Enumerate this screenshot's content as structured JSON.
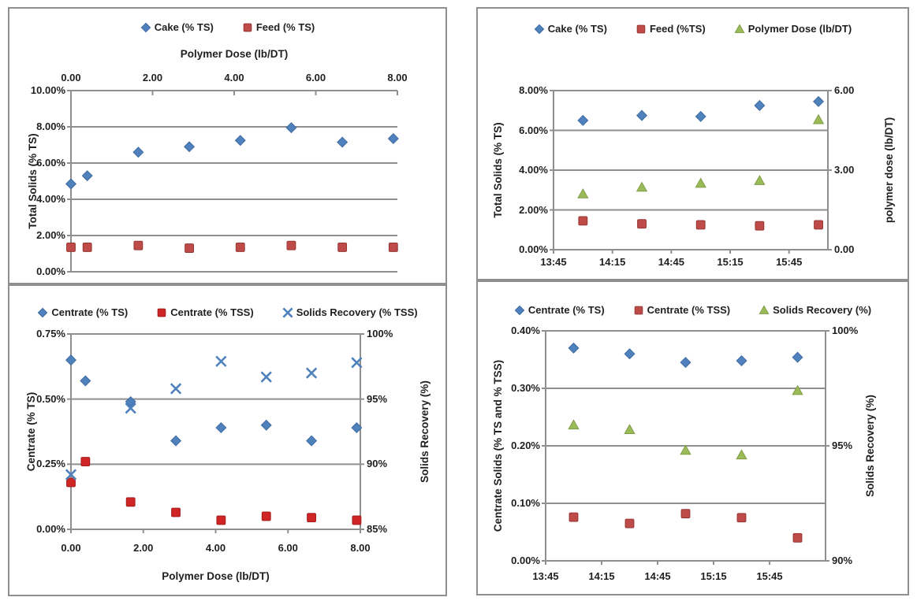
{
  "colors": {
    "marker_blue": "#4f81bd",
    "marker_blue_stroke": "#3f6ba3",
    "marker_red": "#be4b48",
    "marker_red_stroke": "#963734",
    "marker_bright_red": "#cf2525",
    "marker_bright_red_stroke": "#a21d1d",
    "marker_green": "#9bbb59",
    "marker_green_stroke": "#7e9d44",
    "gridline": "#8f8f8f",
    "panel_border": "#8f8f8f",
    "text": "#1f1f1f"
  },
  "chart_data": [
    {
      "type": "scatter",
      "position": "top-left",
      "x_axis": {
        "title": "Polymer Dose (lb/DT)",
        "side": "top",
        "min": 0,
        "max": 8,
        "ticks": [
          "0.00",
          "2.00",
          "4.00",
          "6.00",
          "8.00"
        ],
        "tick_values": [
          0,
          2,
          4,
          6,
          8
        ]
      },
      "y_axis": {
        "title": "Total Solids (% TS)",
        "min": 0,
        "max": 10,
        "ticks": [
          "0.00%",
          "2.00%",
          "4.00%",
          "6.00%",
          "8.00%",
          "10.00%"
        ],
        "tick_values": [
          0,
          2,
          4,
          6,
          8,
          10
        ]
      },
      "series": [
        {
          "key": "cake-ts",
          "name": "Cake (% TS)",
          "marker": "diamond",
          "fill": "#4f81bd",
          "stroke": "#3f6ba3",
          "axis": "left",
          "x": [
            0,
            0.4,
            1.65,
            2.9,
            4.15,
            5.4,
            6.65,
            7.9
          ],
          "y": [
            4.85,
            5.3,
            6.6,
            6.9,
            7.25,
            7.95,
            7.15,
            7.35
          ]
        },
        {
          "key": "feed-ts",
          "name": "Feed (% TS)",
          "marker": "square",
          "fill": "#be4b48",
          "stroke": "#963734",
          "axis": "left",
          "x": [
            0,
            0.4,
            1.65,
            2.9,
            4.15,
            5.4,
            6.65,
            7.9
          ],
          "y": [
            1.35,
            1.35,
            1.45,
            1.3,
            1.35,
            1.45,
            1.35,
            1.35
          ]
        }
      ]
    },
    {
      "type": "scatter",
      "position": "top-right",
      "x_axis": {
        "title": "",
        "side": "bottom",
        "min": 13.75,
        "max": 16.08,
        "ticks": [
          "13:45",
          "14:15",
          "14:45",
          "15:15",
          "15:45"
        ],
        "tick_values": [
          13.75,
          14.25,
          14.75,
          15.25,
          15.75
        ]
      },
      "y_axis": {
        "title": "Total Solids (% TS)",
        "min": 0,
        "max": 8,
        "ticks": [
          "0.00%",
          "2.00%",
          "4.00%",
          "6.00%",
          "8.00%"
        ],
        "tick_values": [
          0,
          2,
          4,
          6,
          8
        ]
      },
      "y_axis_right": {
        "title": "polymer dose (lb/DT)",
        "min": 0,
        "max": 6,
        "ticks": [
          "0.00",
          "3.00",
          "6.00"
        ],
        "tick_values": [
          0,
          3,
          6
        ]
      },
      "series": [
        {
          "key": "cake-ts",
          "name": "Cake (% TS)",
          "marker": "diamond",
          "fill": "#4f81bd",
          "stroke": "#3f6ba3",
          "axis": "left",
          "x": [
            14.0,
            14.5,
            15.0,
            15.5,
            16.0
          ],
          "y": [
            6.5,
            6.75,
            6.7,
            7.25,
            7.45
          ]
        },
        {
          "key": "feed-ts",
          "name": "Feed (%TS)",
          "marker": "square",
          "fill": "#be4b48",
          "stroke": "#963734",
          "axis": "left",
          "x": [
            14.0,
            14.5,
            15.0,
            15.5,
            16.0
          ],
          "y": [
            1.45,
            1.3,
            1.25,
            1.2,
            1.25
          ]
        },
        {
          "key": "polymer-dose",
          "name": "Polymer Dose (lb/DT)",
          "marker": "triangle",
          "fill": "#9bbb59",
          "stroke": "#7e9d44",
          "axis": "right",
          "x": [
            14.0,
            14.5,
            15.0,
            15.5,
            16.0
          ],
          "y": [
            2.1,
            2.35,
            2.5,
            2.6,
            4.9
          ]
        }
      ]
    },
    {
      "type": "scatter",
      "position": "bottom-left",
      "x_axis": {
        "title": "Polymer Dose (lb/DT)",
        "side": "bottom",
        "min": 0,
        "max": 8,
        "ticks": [
          "0.00",
          "2.00",
          "4.00",
          "6.00",
          "8.00"
        ],
        "tick_values": [
          0,
          2,
          4,
          6,
          8
        ]
      },
      "y_axis": {
        "title": "Centrate (% TS)",
        "min": 0,
        "max": 0.75,
        "ticks": [
          "0.00%",
          "0.25%",
          "0.50%",
          "0.75%"
        ],
        "tick_values": [
          0,
          0.25,
          0.5,
          0.75
        ]
      },
      "y_axis_right": {
        "title": "Solids Recovery (%)",
        "min": 85,
        "max": 100,
        "ticks": [
          "85%",
          "90%",
          "95%",
          "100%"
        ],
        "tick_values": [
          85,
          90,
          95,
          100
        ]
      },
      "series": [
        {
          "key": "centrate-ts",
          "name": "Centrate (% TS)",
          "marker": "diamond",
          "fill": "#4f81bd",
          "stroke": "#3f6ba3",
          "axis": "left",
          "x": [
            0,
            0.4,
            1.65,
            2.9,
            4.15,
            5.4,
            6.65,
            7.9
          ],
          "y": [
            0.65,
            0.57,
            0.49,
            0.34,
            0.39,
            0.4,
            0.34,
            0.39
          ]
        },
        {
          "key": "centrate-tss",
          "name": "Centrate (% TSS)",
          "marker": "square",
          "fill": "#cf2525",
          "stroke": "#a21d1d",
          "axis": "left",
          "x": [
            0,
            0.4,
            1.65,
            2.9,
            4.15,
            5.4,
            6.65,
            7.9
          ],
          "y": [
            0.18,
            0.26,
            0.105,
            0.065,
            0.035,
            0.05,
            0.045,
            0.035
          ]
        },
        {
          "key": "solids-recovery",
          "name": "Solids Recovery (% TSS)",
          "marker": "xmark",
          "fill": "#4f81bd",
          "stroke": "#3f6ba3",
          "axis": "right",
          "x": [
            0,
            1.65,
            2.9,
            4.15,
            5.4,
            6.65,
            7.9
          ],
          "y": [
            89.2,
            94.3,
            95.8,
            97.9,
            96.7,
            97.0,
            97.8
          ]
        }
      ]
    },
    {
      "type": "scatter",
      "position": "bottom-right",
      "x_axis": {
        "title": "",
        "side": "bottom",
        "min": 13.75,
        "max": 16.25,
        "ticks": [
          "13:45",
          "14:15",
          "14:45",
          "15:15",
          "15:45"
        ],
        "tick_values": [
          13.75,
          14.25,
          14.75,
          15.25,
          15.75
        ]
      },
      "y_axis": {
        "title": "Centrate Solids (% TS and % TSS)",
        "min": 0,
        "max": 0.4,
        "ticks": [
          "0.00%",
          "0.10%",
          "0.20%",
          "0.30%",
          "0.40%"
        ],
        "tick_values": [
          0,
          0.1,
          0.2,
          0.3,
          0.4
        ]
      },
      "y_axis_right": {
        "title": "Solids Recovery (%)",
        "min": 90,
        "max": 100,
        "ticks": [
          "90%",
          "95%",
          "100%"
        ],
        "tick_values": [
          90,
          95,
          100
        ]
      },
      "series": [
        {
          "key": "centrate-ts",
          "name": "Centrate (% TS)",
          "marker": "diamond",
          "fill": "#4f81bd",
          "stroke": "#3f6ba3",
          "axis": "left",
          "x": [
            14.0,
            14.5,
            15.0,
            15.5,
            16.0
          ],
          "y": [
            0.37,
            0.36,
            0.345,
            0.348,
            0.354
          ]
        },
        {
          "key": "centrate-tss",
          "name": "Centrate (% TSS)",
          "marker": "square",
          "fill": "#be4b48",
          "stroke": "#963734",
          "axis": "left",
          "x": [
            14.0,
            14.5,
            15.0,
            15.5,
            16.0
          ],
          "y": [
            0.076,
            0.065,
            0.082,
            0.075,
            0.04
          ]
        },
        {
          "key": "solids-recovery",
          "name": "Solids Recovery (%)",
          "marker": "triangle",
          "fill": "#9bbb59",
          "stroke": "#7e9d44",
          "axis": "right",
          "x": [
            14.0,
            14.5,
            15.0,
            15.5,
            16.0
          ],
          "y": [
            95.9,
            95.7,
            94.8,
            94.6,
            97.4
          ]
        }
      ]
    }
  ]
}
